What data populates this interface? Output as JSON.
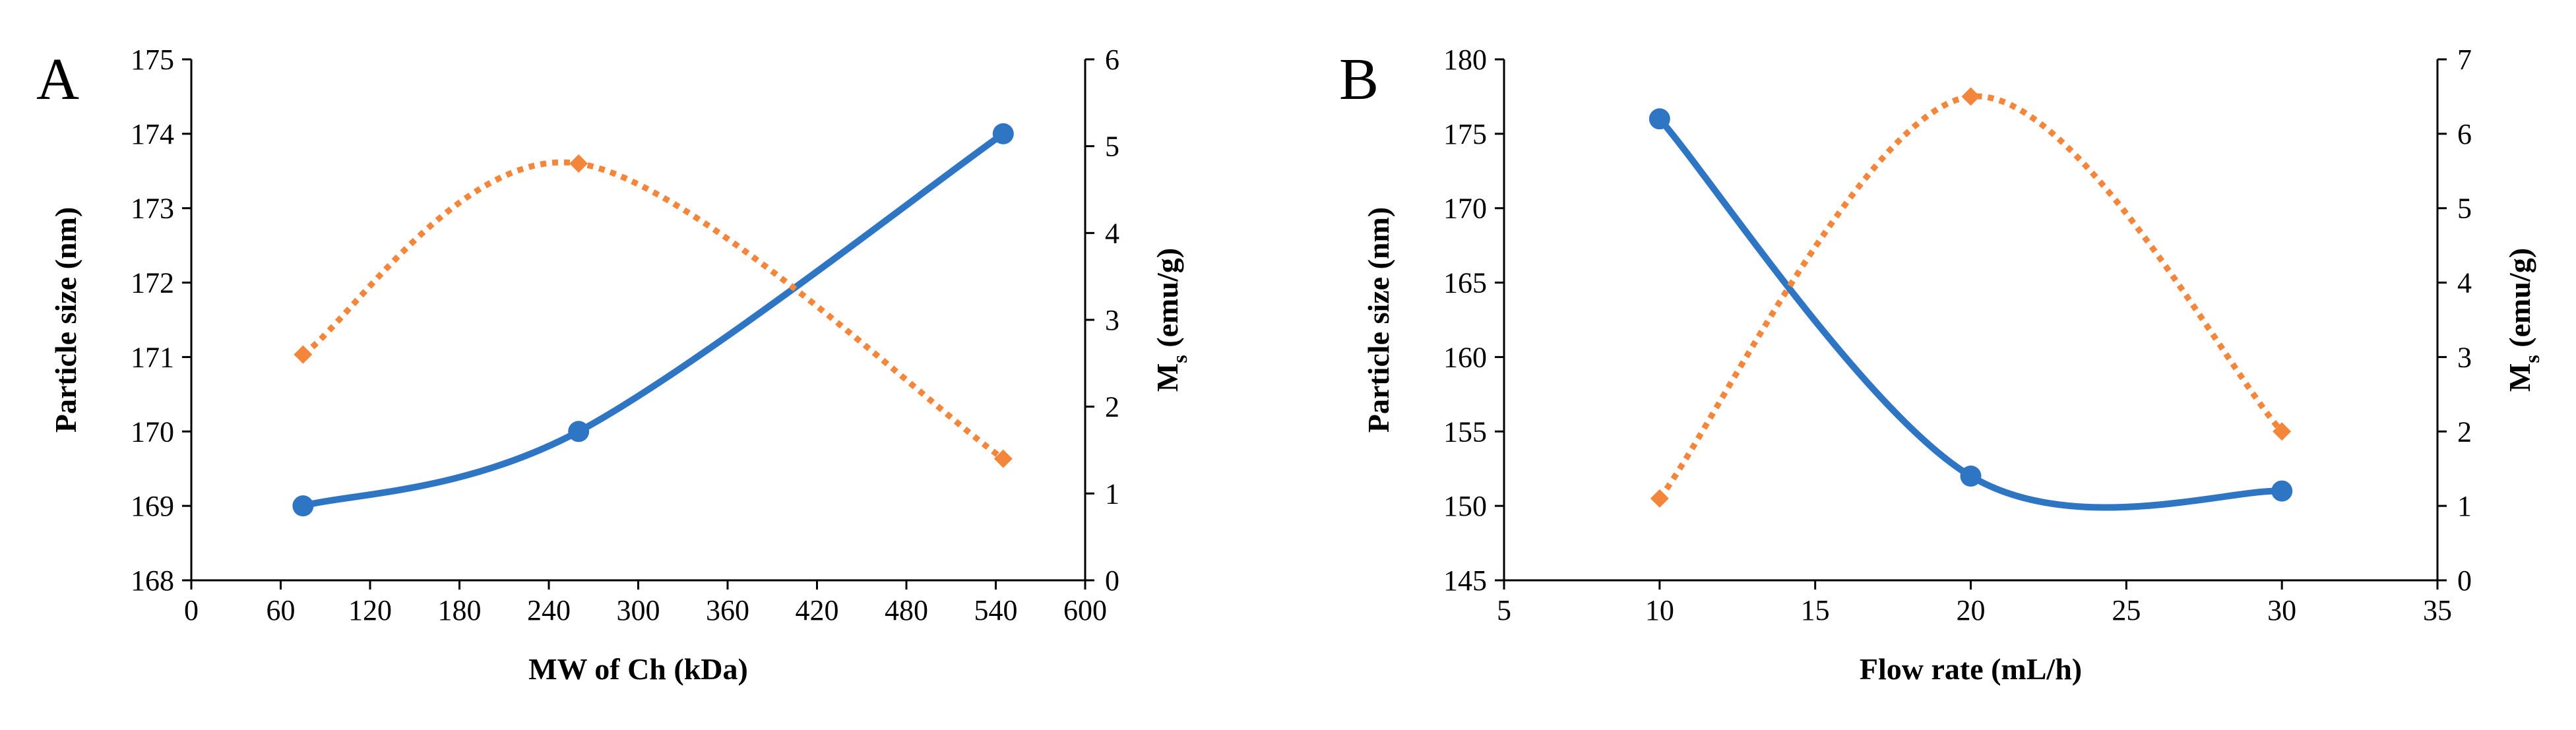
{
  "colors": {
    "series1": "#2e75c4",
    "series2": "#f4863c",
    "axis": "#000000"
  },
  "chart_data": [
    {
      "type": "line",
      "panel_label": "A",
      "xlabel": "MW of Ch (kDa)",
      "ylabel": "Particle size (nm)",
      "y2label_main": "M",
      "y2label_sub": "s",
      "y2label_units": " (emu/g)",
      "xlim": [
        0,
        600
      ],
      "ylim": [
        168,
        175
      ],
      "y2lim": [
        0,
        6
      ],
      "xticks": [
        0,
        60,
        120,
        180,
        240,
        300,
        360,
        420,
        480,
        540,
        600
      ],
      "yticks": [
        168,
        169,
        170,
        171,
        172,
        173,
        174,
        175
      ],
      "y2ticks": [
        0,
        1,
        2,
        3,
        4,
        5,
        6
      ],
      "series": [
        {
          "name": "Particle size",
          "axis": "left",
          "style": "solid",
          "marker": "circle",
          "x": [
            75,
            260,
            545
          ],
          "y": [
            169,
            170,
            174
          ]
        },
        {
          "name": "Ms",
          "axis": "right",
          "style": "dotted",
          "marker": "diamond",
          "x": [
            75,
            260,
            545
          ],
          "y": [
            2.6,
            4.8,
            1.4
          ]
        }
      ]
    },
    {
      "type": "line",
      "panel_label": "B",
      "xlabel": "Flow rate (mL/h)",
      "ylabel": "Particle size (nm)",
      "y2label_main": "M",
      "y2label_sub": "s",
      "y2label_units": " (emu/g)",
      "xlim": [
        5,
        35
      ],
      "ylim": [
        145,
        180
      ],
      "y2lim": [
        0,
        7
      ],
      "xticks": [
        5,
        10,
        15,
        20,
        25,
        30,
        35
      ],
      "yticks": [
        145,
        150,
        155,
        160,
        165,
        170,
        175,
        180
      ],
      "y2ticks": [
        0,
        1,
        2,
        3,
        4,
        5,
        6,
        7
      ],
      "series": [
        {
          "name": "Particle size",
          "axis": "left",
          "style": "solid",
          "marker": "circle",
          "x": [
            10,
            20,
            30
          ],
          "y": [
            176,
            152,
            151
          ]
        },
        {
          "name": "Ms",
          "axis": "right",
          "style": "dotted",
          "marker": "diamond",
          "x": [
            10,
            20,
            30
          ],
          "y": [
            1.1,
            6.5,
            2.0
          ]
        }
      ]
    }
  ]
}
